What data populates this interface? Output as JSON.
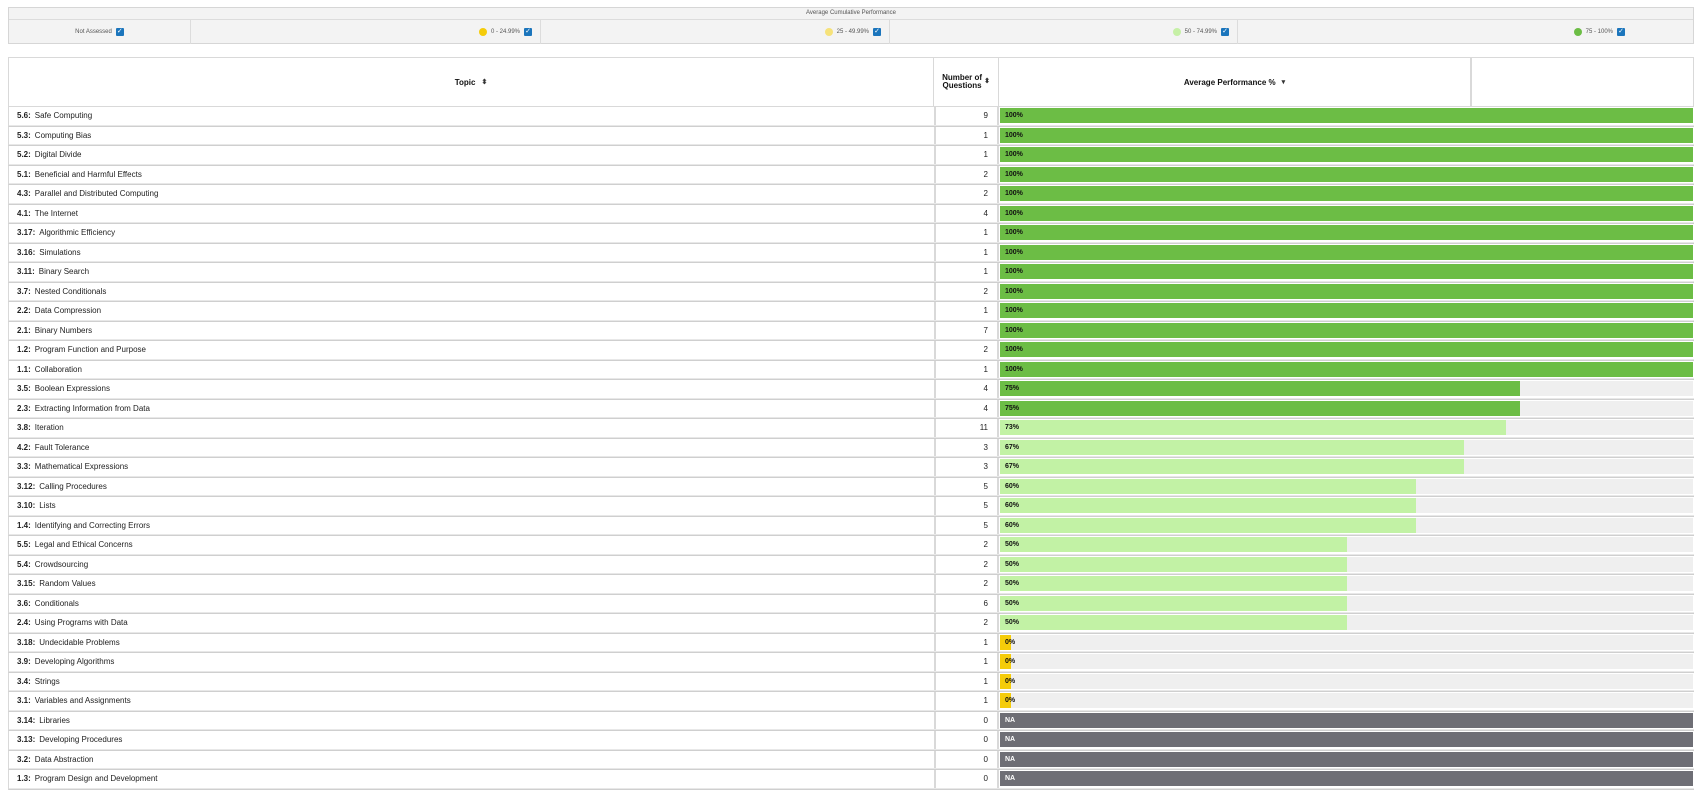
{
  "legend": {
    "title": "Average Cumulative Performance",
    "items": [
      {
        "label": "Not Assessed",
        "color": "",
        "checked": true
      },
      {
        "label": "0 - 24.99%",
        "color": "#f5cc0a",
        "checked": true
      },
      {
        "label": "25 - 49.99%",
        "color": "#f6e27a",
        "checked": true
      },
      {
        "label": "50 - 74.99%",
        "color": "#c6f0a6",
        "checked": true
      },
      {
        "label": "75 - 100%",
        "color": "#6cbd45",
        "checked": true
      }
    ]
  },
  "table": {
    "headers": {
      "topic": "Topic",
      "questions": "Number of Questions",
      "performance": "Average Performance %"
    },
    "rows": [
      {
        "code": "5.6:",
        "name": "Safe Computing",
        "questions": "9",
        "percent": 100,
        "label": "100%",
        "status": "high"
      },
      {
        "code": "5.3:",
        "name": "Computing Bias",
        "questions": "1",
        "percent": 100,
        "label": "100%",
        "status": "high"
      },
      {
        "code": "5.2:",
        "name": "Digital Divide",
        "questions": "1",
        "percent": 100,
        "label": "100%",
        "status": "high"
      },
      {
        "code": "5.1:",
        "name": "Beneficial and Harmful Effects",
        "questions": "2",
        "percent": 100,
        "label": "100%",
        "status": "high"
      },
      {
        "code": "4.3:",
        "name": "Parallel and Distributed Computing",
        "questions": "2",
        "percent": 100,
        "label": "100%",
        "status": "high"
      },
      {
        "code": "4.1:",
        "name": "The Internet",
        "questions": "4",
        "percent": 100,
        "label": "100%",
        "status": "high"
      },
      {
        "code": "3.17:",
        "name": "Algorithmic Efficiency",
        "questions": "1",
        "percent": 100,
        "label": "100%",
        "status": "high"
      },
      {
        "code": "3.16:",
        "name": "Simulations",
        "questions": "1",
        "percent": 100,
        "label": "100%",
        "status": "high"
      },
      {
        "code": "3.11:",
        "name": "Binary Search",
        "questions": "1",
        "percent": 100,
        "label": "100%",
        "status": "high"
      },
      {
        "code": "3.7:",
        "name": "Nested Conditionals",
        "questions": "2",
        "percent": 100,
        "label": "100%",
        "status": "high"
      },
      {
        "code": "2.2:",
        "name": "Data Compression",
        "questions": "1",
        "percent": 100,
        "label": "100%",
        "status": "high"
      },
      {
        "code": "2.1:",
        "name": "Binary Numbers",
        "questions": "7",
        "percent": 100,
        "label": "100%",
        "status": "high"
      },
      {
        "code": "1.2:",
        "name": "Program Function and Purpose",
        "questions": "2",
        "percent": 100,
        "label": "100%",
        "status": "high"
      },
      {
        "code": "1.1:",
        "name": "Collaboration",
        "questions": "1",
        "percent": 100,
        "label": "100%",
        "status": "high"
      },
      {
        "code": "3.5:",
        "name": "Boolean Expressions",
        "questions": "4",
        "percent": 75,
        "label": "75%",
        "status": "high"
      },
      {
        "code": "2.3:",
        "name": "Extracting Information from Data",
        "questions": "4",
        "percent": 75,
        "label": "75%",
        "status": "high"
      },
      {
        "code": "3.8:",
        "name": "Iteration",
        "questions": "11",
        "percent": 73,
        "label": "73%",
        "status": "mid"
      },
      {
        "code": "4.2:",
        "name": "Fault Tolerance",
        "questions": "3",
        "percent": 67,
        "label": "67%",
        "status": "mid"
      },
      {
        "code": "3.3:",
        "name": "Mathematical Expressions",
        "questions": "3",
        "percent": 67,
        "label": "67%",
        "status": "mid"
      },
      {
        "code": "3.12:",
        "name": "Calling Procedures",
        "questions": "5",
        "percent": 60,
        "label": "60%",
        "status": "mid"
      },
      {
        "code": "3.10:",
        "name": "Lists",
        "questions": "5",
        "percent": 60,
        "label": "60%",
        "status": "mid"
      },
      {
        "code": "1.4:",
        "name": "Identifying and Correcting Errors",
        "questions": "5",
        "percent": 60,
        "label": "60%",
        "status": "mid"
      },
      {
        "code": "5.5:",
        "name": "Legal and Ethical Concerns",
        "questions": "2",
        "percent": 50,
        "label": "50%",
        "status": "mid"
      },
      {
        "code": "5.4:",
        "name": "Crowdsourcing",
        "questions": "2",
        "percent": 50,
        "label": "50%",
        "status": "mid"
      },
      {
        "code": "3.15:",
        "name": "Random Values",
        "questions": "2",
        "percent": 50,
        "label": "50%",
        "status": "mid"
      },
      {
        "code": "3.6:",
        "name": "Conditionals",
        "questions": "6",
        "percent": 50,
        "label": "50%",
        "status": "mid"
      },
      {
        "code": "2.4:",
        "name": "Using Programs with Data",
        "questions": "2",
        "percent": 50,
        "label": "50%",
        "status": "mid"
      },
      {
        "code": "3.18:",
        "name": "Undecidable Problems",
        "questions": "1",
        "percent": 0,
        "label": "0%",
        "status": "low"
      },
      {
        "code": "3.9:",
        "name": "Developing Algorithms",
        "questions": "1",
        "percent": 0,
        "label": "0%",
        "status": "low"
      },
      {
        "code": "3.4:",
        "name": "Strings",
        "questions": "1",
        "percent": 0,
        "label": "0%",
        "status": "low"
      },
      {
        "code": "3.1:",
        "name": "Variables and Assignments",
        "questions": "1",
        "percent": 0,
        "label": "0%",
        "status": "low"
      },
      {
        "code": "3.14:",
        "name": "Libraries",
        "questions": "0",
        "percent": 100,
        "label": "NA",
        "status": "na"
      },
      {
        "code": "3.13:",
        "name": "Developing Procedures",
        "questions": "0",
        "percent": 100,
        "label": "NA",
        "status": "na"
      },
      {
        "code": "3.2:",
        "name": "Data Abstraction",
        "questions": "0",
        "percent": 100,
        "label": "NA",
        "status": "na"
      },
      {
        "code": "1.3:",
        "name": "Program Design and Development",
        "questions": "0",
        "percent": 100,
        "label": "NA",
        "status": "na"
      }
    ]
  },
  "colors": {
    "high": "#6cbd45",
    "mid": "#c2f2a5",
    "low": "#f5cc0a",
    "na": "#6e6e75",
    "checkbox": "#1b75bc"
  }
}
